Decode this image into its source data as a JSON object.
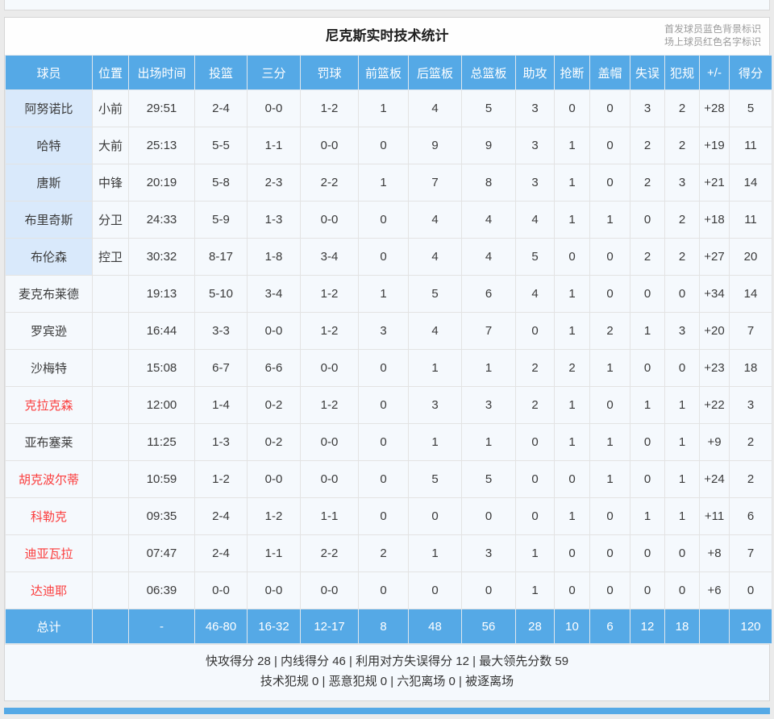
{
  "colors": {
    "accent_blue": "#55a9e6",
    "starter_row_bg": "#d9e9fb",
    "oncourt_red": "#fb3c3c"
  },
  "header": {
    "title": "尼克斯实时技术统计",
    "legend_line1": "首发球员蓝色背景标识",
    "legend_line2": "场上球员红色名字标识"
  },
  "table": {
    "columns": [
      "球员",
      "位置",
      "出场时间",
      "投篮",
      "三分",
      "罚球",
      "前篮板",
      "后篮板",
      "总篮板",
      "助攻",
      "抢断",
      "盖帽",
      "失误",
      "犯规",
      "+/-",
      "得分"
    ],
    "players": [
      {
        "name": "阿努诺比",
        "starter": true,
        "red": false,
        "pos": "小前",
        "time": "29:51",
        "fg": "2-4",
        "tp": "0-0",
        "ft": "1-2",
        "orb": "1",
        "drb": "4",
        "trb": "5",
        "ast": "3",
        "stl": "0",
        "blk": "0",
        "tov": "3",
        "pf": "2",
        "pm": "+28",
        "pts": "5"
      },
      {
        "name": "哈特",
        "starter": true,
        "red": false,
        "pos": "大前",
        "time": "25:13",
        "fg": "5-5",
        "tp": "1-1",
        "ft": "0-0",
        "orb": "0",
        "drb": "9",
        "trb": "9",
        "ast": "3",
        "stl": "1",
        "blk": "0",
        "tov": "2",
        "pf": "2",
        "pm": "+19",
        "pts": "11"
      },
      {
        "name": "唐斯",
        "starter": true,
        "red": false,
        "pos": "中锋",
        "time": "20:19",
        "fg": "5-8",
        "tp": "2-3",
        "ft": "2-2",
        "orb": "1",
        "drb": "7",
        "trb": "8",
        "ast": "3",
        "stl": "1",
        "blk": "0",
        "tov": "2",
        "pf": "3",
        "pm": "+21",
        "pts": "14"
      },
      {
        "name": "布里奇斯",
        "starter": true,
        "red": false,
        "pos": "分卫",
        "time": "24:33",
        "fg": "5-9",
        "tp": "1-3",
        "ft": "0-0",
        "orb": "0",
        "drb": "4",
        "trb": "4",
        "ast": "4",
        "stl": "1",
        "blk": "1",
        "tov": "0",
        "pf": "2",
        "pm": "+18",
        "pts": "11"
      },
      {
        "name": "布伦森",
        "starter": true,
        "red": false,
        "pos": "控卫",
        "time": "30:32",
        "fg": "8-17",
        "tp": "1-8",
        "ft": "3-4",
        "orb": "0",
        "drb": "4",
        "trb": "4",
        "ast": "5",
        "stl": "0",
        "blk": "0",
        "tov": "2",
        "pf": "2",
        "pm": "+27",
        "pts": "20"
      },
      {
        "name": "麦克布莱德",
        "starter": false,
        "red": false,
        "pos": "",
        "time": "19:13",
        "fg": "5-10",
        "tp": "3-4",
        "ft": "1-2",
        "orb": "1",
        "drb": "5",
        "trb": "6",
        "ast": "4",
        "stl": "1",
        "blk": "0",
        "tov": "0",
        "pf": "0",
        "pm": "+34",
        "pts": "14"
      },
      {
        "name": "罗宾逊",
        "starter": false,
        "red": false,
        "pos": "",
        "time": "16:44",
        "fg": "3-3",
        "tp": "0-0",
        "ft": "1-2",
        "orb": "3",
        "drb": "4",
        "trb": "7",
        "ast": "0",
        "stl": "1",
        "blk": "2",
        "tov": "1",
        "pf": "3",
        "pm": "+20",
        "pts": "7"
      },
      {
        "name": "沙梅特",
        "starter": false,
        "red": false,
        "pos": "",
        "time": "15:08",
        "fg": "6-7",
        "tp": "6-6",
        "ft": "0-0",
        "orb": "0",
        "drb": "1",
        "trb": "1",
        "ast": "2",
        "stl": "2",
        "blk": "1",
        "tov": "0",
        "pf": "0",
        "pm": "+23",
        "pts": "18"
      },
      {
        "name": "克拉克森",
        "starter": false,
        "red": true,
        "pos": "",
        "time": "12:00",
        "fg": "1-4",
        "tp": "0-2",
        "ft": "1-2",
        "orb": "0",
        "drb": "3",
        "trb": "3",
        "ast": "2",
        "stl": "1",
        "blk": "0",
        "tov": "1",
        "pf": "1",
        "pm": "+22",
        "pts": "3"
      },
      {
        "name": "亚布塞莱",
        "starter": false,
        "red": false,
        "pos": "",
        "time": "11:25",
        "fg": "1-3",
        "tp": "0-2",
        "ft": "0-0",
        "orb": "0",
        "drb": "1",
        "trb": "1",
        "ast": "0",
        "stl": "1",
        "blk": "1",
        "tov": "0",
        "pf": "1",
        "pm": "+9",
        "pts": "2"
      },
      {
        "name": "胡克波尔蒂",
        "starter": false,
        "red": true,
        "pos": "",
        "time": "10:59",
        "fg": "1-2",
        "tp": "0-0",
        "ft": "0-0",
        "orb": "0",
        "drb": "5",
        "trb": "5",
        "ast": "0",
        "stl": "0",
        "blk": "1",
        "tov": "0",
        "pf": "1",
        "pm": "+24",
        "pts": "2"
      },
      {
        "name": "科勒克",
        "starter": false,
        "red": true,
        "pos": "",
        "time": "09:35",
        "fg": "2-4",
        "tp": "1-2",
        "ft": "1-1",
        "orb": "0",
        "drb": "0",
        "trb": "0",
        "ast": "0",
        "stl": "1",
        "blk": "0",
        "tov": "1",
        "pf": "1",
        "pm": "+11",
        "pts": "6"
      },
      {
        "name": "迪亚瓦拉",
        "starter": false,
        "red": true,
        "pos": "",
        "time": "07:47",
        "fg": "2-4",
        "tp": "1-1",
        "ft": "2-2",
        "orb": "2",
        "drb": "1",
        "trb": "3",
        "ast": "1",
        "stl": "0",
        "blk": "0",
        "tov": "0",
        "pf": "0",
        "pm": "+8",
        "pts": "7"
      },
      {
        "name": "达迪耶",
        "starter": false,
        "red": true,
        "pos": "",
        "time": "06:39",
        "fg": "0-0",
        "tp": "0-0",
        "ft": "0-0",
        "orb": "0",
        "drb": "0",
        "trb": "0",
        "ast": "1",
        "stl": "0",
        "blk": "0",
        "tov": "0",
        "pf": "0",
        "pm": "+6",
        "pts": "0"
      }
    ],
    "totals": {
      "name": "总计",
      "pos": "",
      "time": "-",
      "fg": "46-80",
      "tp": "16-32",
      "ft": "12-17",
      "orb": "8",
      "drb": "48",
      "trb": "56",
      "ast": "28",
      "stl": "10",
      "blk": "6",
      "tov": "12",
      "pf": "18",
      "pm": "",
      "pts": "120"
    }
  },
  "footer": {
    "line1": "快攻得分 28 | 内线得分 46 | 利用对方失误得分 12 | 最大领先分数 59",
    "line2": "技术犯规 0 | 恶意犯规 0 | 六犯离场 0 | 被逐离场"
  }
}
